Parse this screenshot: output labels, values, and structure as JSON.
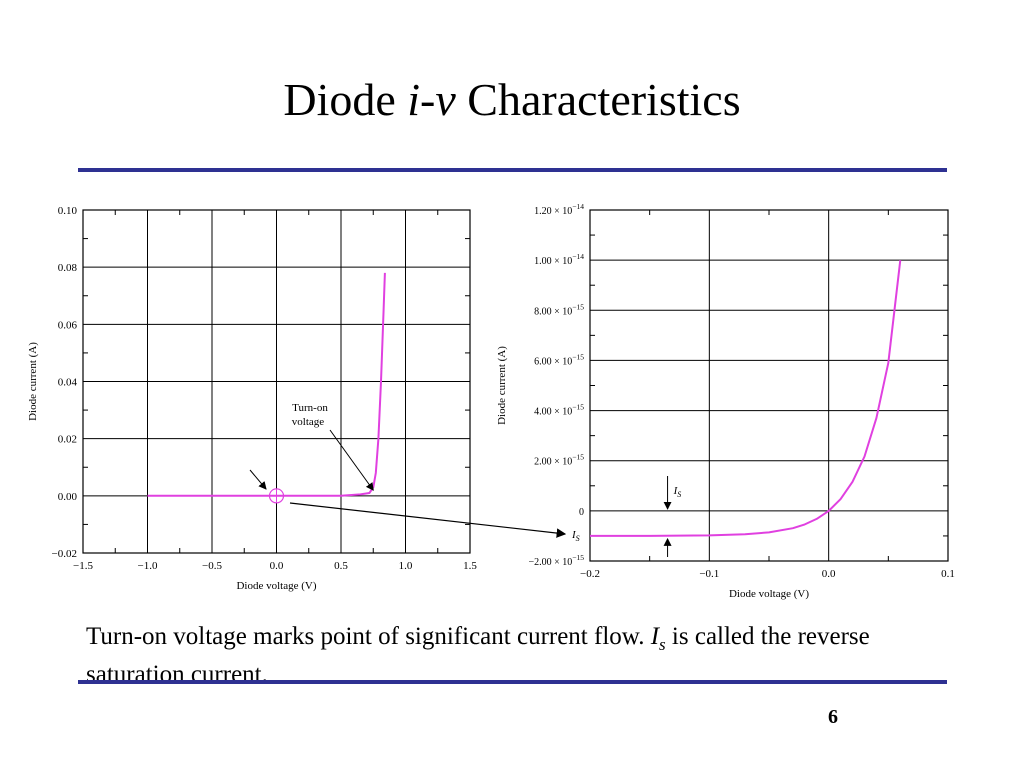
{
  "slide": {
    "title_pre": "Diode ",
    "title_italic": "i-v",
    "title_post": " Characteristics",
    "caption_part1": "Turn-on voltage marks point of significant current flow.  ",
    "caption_is_main": "I",
    "caption_is_sub": "s",
    "caption_part2": " is called the reverse saturation current.",
    "page_number": "6",
    "accent_color": "#2e3192",
    "curve_color": "#e040e0"
  },
  "chart_data": [
    {
      "type": "line",
      "xlabel": "Diode voltage (V)",
      "ylabel": "Diode current (A)",
      "xlim": [
        -1.5,
        1.5
      ],
      "ylim": [
        -0.02,
        0.1
      ],
      "x_ticks": [
        "−1.5",
        "−1.0",
        "−0.5",
        "0.0",
        "0.5",
        "1.0",
        "1.5"
      ],
      "y_ticks": [
        "−0.02",
        "0.00",
        "0.02",
        "0.04",
        "0.06",
        "0.08",
        "0.10"
      ],
      "grid": true,
      "series": [
        {
          "x": [
            -1.0,
            0.0,
            0.5,
            0.65,
            0.72,
            0.75,
            0.77,
            0.79,
            0.81,
            0.83,
            0.84
          ],
          "y": [
            0.0,
            0.0,
            0.0,
            0.0005,
            0.001,
            0.003,
            0.008,
            0.02,
            0.04,
            0.065,
            0.078
          ]
        }
      ],
      "annotations": {
        "turn_on_line1": "Turn-on",
        "turn_on_line2": "voltage"
      }
    },
    {
      "type": "line",
      "xlabel": "Diode voltage (V)",
      "ylabel": "Diode current (A)",
      "xlim": [
        -0.2,
        0.1
      ],
      "ylim": [
        -2e-15,
        1.2e-14
      ],
      "x_ticks": [
        "−0.2",
        "−0.1",
        "0.0",
        "0.1"
      ],
      "y_ticks": [
        {
          "mant": "−2.00 × 10",
          "exp": "−15"
        },
        {
          "mant": "0",
          "exp": ""
        },
        {
          "mant": "2.00 × 10",
          "exp": "−15"
        },
        {
          "mant": "4.00 × 10",
          "exp": "−15"
        },
        {
          "mant": "6.00 × 10",
          "exp": "−15"
        },
        {
          "mant": "8.00 × 10",
          "exp": "−15"
        },
        {
          "mant": "1.00 × 10",
          "exp": "−14"
        },
        {
          "mant": "1.20 × 10",
          "exp": "−14"
        }
      ],
      "grid": true,
      "series": [
        {
          "x": [
            -0.2,
            -0.15,
            -0.1,
            -0.07,
            -0.05,
            -0.03,
            -0.02,
            -0.01,
            0.0,
            0.01,
            0.02,
            0.03,
            0.04,
            0.05,
            0.06
          ],
          "y": [
            -1e-15,
            -1e-15,
            -9.8e-16,
            -9.3e-16,
            -8.6e-16,
            -6.9e-16,
            -5.4e-16,
            -3.2e-16,
            0.0,
            4.7e-16,
            1.16e-15,
            2.17e-15,
            3.7e-15,
            5.9e-15,
            1e-14
          ]
        }
      ],
      "annotations": {
        "is_label_main": "I",
        "is_label_sub": "S"
      }
    }
  ]
}
